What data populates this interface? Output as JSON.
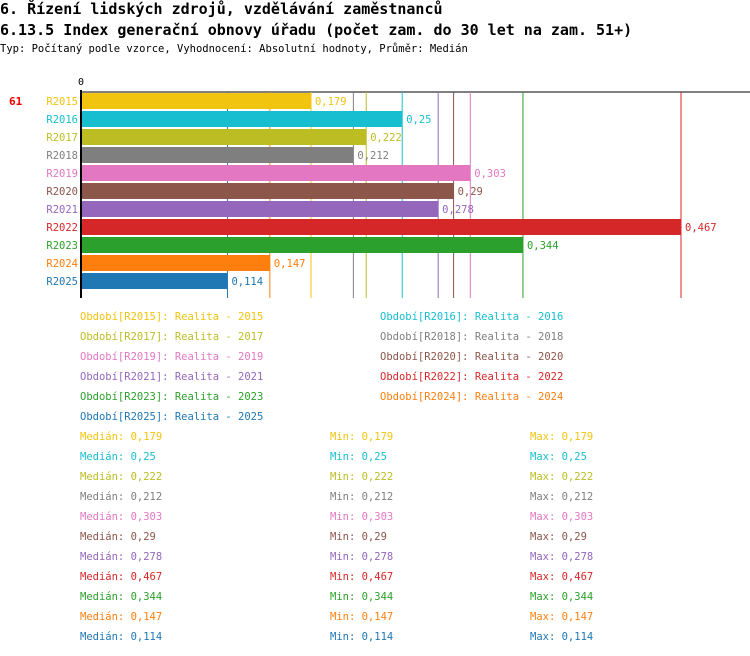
{
  "header": {
    "title": "6. Řízení lidských zdrojů, vzdělávání zaměstnanců",
    "subtitle": "6.13.5 Index generační obnovy úřadu (počet zam. do 30 let na zam. 51+)",
    "info": "Typ: Počítaný podle vzorce, Vyhodnocení: Absolutní hodnoty, Průměr: Medián"
  },
  "chart_data": {
    "type": "bar",
    "orientation": "horizontal",
    "row_id": "61",
    "axis_zero_label": "0",
    "categories": [
      "R2015",
      "R2016",
      "R2017",
      "R2018",
      "R2019",
      "R2020",
      "R2021",
      "R2022",
      "R2023",
      "R2024",
      "R2025"
    ],
    "values": [
      0.179,
      0.25,
      0.222,
      0.212,
      0.303,
      0.29,
      0.278,
      0.467,
      0.344,
      0.147,
      0.114
    ],
    "value_labels": [
      "0,179",
      "0,25",
      "0,222",
      "0,212",
      "0,303",
      "0,29",
      "0,278",
      "0,467",
      "0,344",
      "0,147",
      "0,114"
    ],
    "colors": [
      "#f1c40f",
      "#17becf",
      "#bcbd22",
      "#7f7f7f",
      "#e377c2",
      "#8c564b",
      "#9467bd",
      "#d62728",
      "#2ca02c",
      "#ff7f0e",
      "#1f77b4"
    ],
    "xlim": [
      0,
      0.467
    ]
  },
  "legend": [
    "Období[R2015]: Realita - 2015",
    "Období[R2016]: Realita - 2016",
    "Období[R2017]: Realita - 2017",
    "Období[R2018]: Realita - 2018",
    "Období[R2019]: Realita - 2019",
    "Období[R2020]: Realita - 2020",
    "Období[R2021]: Realita - 2021",
    "Období[R2022]: Realita - 2022",
    "Období[R2023]: Realita - 2023",
    "Období[R2024]: Realita - 2024",
    "Období[R2025]: Realita - 2025"
  ],
  "stats": [
    [
      "Medián: 0,179",
      "Min: 0,179",
      "Max: 0,179"
    ],
    [
      "Medián: 0,25",
      "Min: 0,25",
      "Max: 0,25"
    ],
    [
      "Medián: 0,222",
      "Min: 0,222",
      "Max: 0,222"
    ],
    [
      "Medián: 0,212",
      "Min: 0,212",
      "Max: 0,212"
    ],
    [
      "Medián: 0,303",
      "Min: 0,303",
      "Max: 0,303"
    ],
    [
      "Medián: 0,29",
      "Min: 0,29",
      "Max: 0,29"
    ],
    [
      "Medián: 0,278",
      "Min: 0,278",
      "Max: 0,278"
    ],
    [
      "Medián: 0,467",
      "Min: 0,467",
      "Max: 0,467"
    ],
    [
      "Medián: 0,344",
      "Min: 0,344",
      "Max: 0,344"
    ],
    [
      "Medián: 0,147",
      "Min: 0,147",
      "Max: 0,147"
    ],
    [
      "Medián: 0,114",
      "Min: 0,114",
      "Max: 0,114"
    ]
  ]
}
